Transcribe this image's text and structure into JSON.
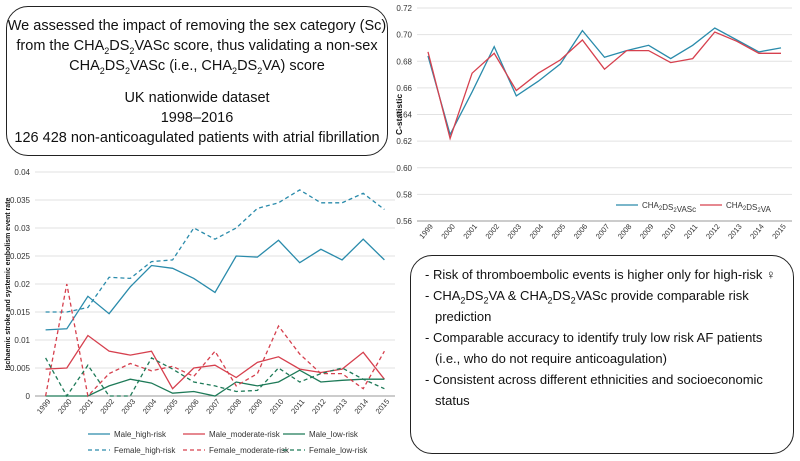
{
  "study_box": {
    "line1": "We assessed the impact of removing the sex category (Sc)",
    "line2_pre": "from the CHA",
    "line2_post": " score, thus validating a non-sex",
    "line3_pre": "CHA",
    "line3_mid": " (i.e., CHA",
    "line3_post": ") score",
    "sub_2": "2",
    "ds": "DS",
    "vasc": "VASc",
    "va": "VA",
    "dataset": "UK nationwide dataset",
    "years": "1998–2016",
    "patients": "126 428 non-anticoagulated patients with atrial fibrillation"
  },
  "findings": {
    "b1": "- Risk of thromboembolic events is higher only for high-risk ♀",
    "b2_a": "- CHA",
    "b2_b": " & CHA",
    "b2_c": " provide comparable risk",
    "b2_cont": "prediction",
    "b3": "- Comparable accuracy to identify truly low risk AF patients",
    "b3_cont": "(i.e., who do not require anticoagulation)",
    "b4": "- Consistent across different ethnicities and socioeconomic",
    "b4_cont": "status"
  },
  "chart_data": [
    {
      "type": "line",
      "title": "",
      "xlabel": "",
      "ylabel": "C-statistic",
      "categories": [
        "1999",
        "2000",
        "2001",
        "2002",
        "2003",
        "2004",
        "2005",
        "2006",
        "2007",
        "2008",
        "2009",
        "2010",
        "2011",
        "2012",
        "2013",
        "2014",
        "2015"
      ],
      "ylim": [
        0.56,
        0.72
      ],
      "yticks": [
        "0.56",
        "0.58",
        "0.60",
        "0.62",
        "0.64",
        "0.66",
        "0.68",
        "0.70",
        "0.72"
      ],
      "series": [
        {
          "name": "CHA2DS2VASc",
          "color": "#2a8bab",
          "values": [
            0.684,
            0.625,
            0.657,
            0.691,
            0.654,
            0.665,
            0.678,
            0.703,
            0.683,
            0.688,
            0.692,
            0.682,
            0.692,
            0.705,
            0.696,
            0.687,
            0.69
          ]
        },
        {
          "name": "CHA2DS2VA",
          "color": "#d6404e",
          "values": [
            0.687,
            0.622,
            0.671,
            0.686,
            0.658,
            0.671,
            0.681,
            0.696,
            0.674,
            0.688,
            0.688,
            0.679,
            0.682,
            0.702,
            0.695,
            0.686,
            0.686
          ]
        }
      ],
      "legend": "bottom"
    },
    {
      "type": "line",
      "title": "",
      "xlabel": "",
      "ylabel": "Ischaemic stroke and systemic embolism event rate",
      "categories": [
        "1999",
        "2000",
        "2001",
        "2002",
        "2003",
        "2004",
        "2005",
        "2006",
        "2007",
        "2008",
        "2009",
        "2010",
        "2011",
        "2012",
        "2013",
        "2014",
        "2015"
      ],
      "ylim": [
        0,
        0.04
      ],
      "yticks": [
        "0",
        "0.005",
        "0.01",
        "0.015",
        "0.02",
        "0.025",
        "0.03",
        "0.035",
        "0.04"
      ],
      "series": [
        {
          "name": "Male_high-risk",
          "color": "#2a8bab",
          "dash": false,
          "values": [
            0.0118,
            0.012,
            0.0178,
            0.0147,
            0.0195,
            0.0233,
            0.0228,
            0.021,
            0.0185,
            0.025,
            0.0248,
            0.0278,
            0.0238,
            0.0262,
            0.0243,
            0.028,
            0.0243
          ]
        },
        {
          "name": "Male_moderate-risk",
          "color": "#d6404e",
          "dash": false,
          "values": [
            0.0048,
            0.005,
            0.0108,
            0.008,
            0.0073,
            0.008,
            0.0013,
            0.005,
            0.0055,
            0.0033,
            0.006,
            0.007,
            0.0048,
            0.0042,
            0.0048,
            0.0078,
            0.003
          ]
        },
        {
          "name": "Male_low-risk",
          "color": "#1e7a58",
          "dash": false,
          "values": [
            0,
            0,
            0,
            0.0018,
            0.003,
            0.0023,
            0.0005,
            0.0008,
            0,
            0.0025,
            0.0018,
            0.0025,
            0.0046,
            0.0025,
            0.0028,
            0.003,
            0.003
          ]
        },
        {
          "name": "Female_high-risk",
          "color": "#2a8bab",
          "dash": true,
          "values": [
            0.015,
            0.015,
            0.0158,
            0.0212,
            0.021,
            0.024,
            0.0243,
            0.03,
            0.028,
            0.03,
            0.0335,
            0.0345,
            0.0368,
            0.0345,
            0.0345,
            0.0362,
            0.0333
          ]
        },
        {
          "name": "Female_moderate-risk",
          "color": "#d6404e",
          "dash": true,
          "values": [
            0,
            0.02,
            0,
            0.004,
            0.0058,
            0.0045,
            0.0053,
            0.0035,
            0.008,
            0.0018,
            0.004,
            0.0125,
            0.0075,
            0.004,
            0.004,
            0.0013,
            0.008
          ]
        },
        {
          "name": "Female_low-risk",
          "color": "#1e7a58",
          "dash": true,
          "values": [
            0.0068,
            0,
            0.0055,
            0,
            0,
            0.0068,
            0.0048,
            0.0025,
            0.0018,
            0.0008,
            0.001,
            0.005,
            0.0025,
            0.004,
            0.005,
            0.003,
            0.0013
          ]
        }
      ],
      "legend": "bottom"
    }
  ]
}
